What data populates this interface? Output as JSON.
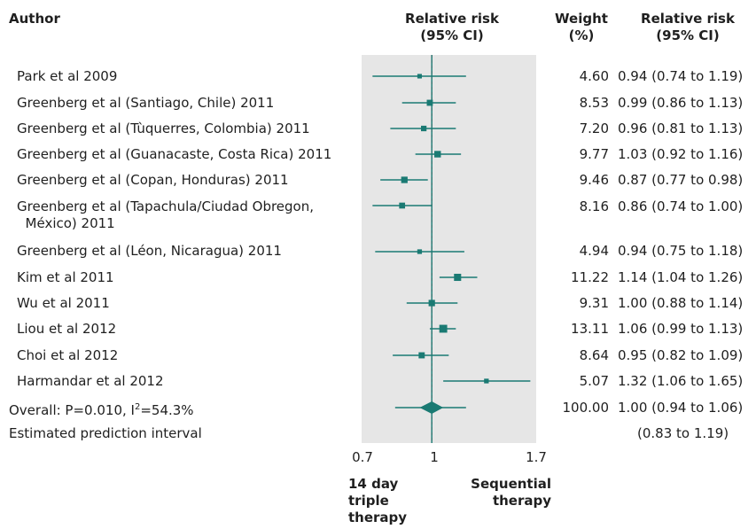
{
  "header": {
    "author": "Author",
    "rr_line1": "Relative risk",
    "rr_line2": "(95% CI)",
    "weight_line1": "Weight",
    "weight_line2": "(%)",
    "ci_line1": "Relative risk",
    "ci_line2": "(95% CI)"
  },
  "chart_data": {
    "type": "forest",
    "title": "",
    "xlabel": "",
    "xlim": [
      0.7,
      1.7
    ],
    "x_ticks": [
      "0.7",
      "1",
      "1.7"
    ],
    "reference_line": 1,
    "colors": {
      "marker": "#1a7a73",
      "panel": "#e6e6e6",
      "reference": "#1a7a73"
    },
    "studies": [
      {
        "author": "Park et al 2009",
        "weight": "4.60",
        "ci_text": "0.94 (0.74 to 1.19)",
        "rr": 0.94,
        "lo": 0.74,
        "hi": 1.19,
        "w": 4.6
      },
      {
        "author": "Greenberg et al (Santiago, Chile) 2011",
        "weight": "8.53",
        "ci_text": "0.99 (0.86 to 1.13)",
        "rr": 0.99,
        "lo": 0.86,
        "hi": 1.13,
        "w": 8.53
      },
      {
        "author": "Greenberg et al (Tùquerres, Colombia) 2011",
        "weight": "7.20",
        "ci_text": "0.96 (0.81 to 1.13)",
        "rr": 0.96,
        "lo": 0.81,
        "hi": 1.13,
        "w": 7.2
      },
      {
        "author": "Greenberg et al (Guanacaste, Costa Rica) 2011",
        "weight": "9.77",
        "ci_text": "1.03 (0.92 to 1.16)",
        "rr": 1.03,
        "lo": 0.92,
        "hi": 1.16,
        "w": 9.77
      },
      {
        "author": "Greenberg et al (Copan, Honduras) 2011",
        "weight": "9.46",
        "ci_text": "0.87 (0.77 to 0.98)",
        "rr": 0.87,
        "lo": 0.77,
        "hi": 0.98,
        "w": 9.46
      },
      {
        "author": "Greenberg et al (Tapachula/Ciudad Obregon,\n  México) 2011",
        "weight": "8.16",
        "ci_text": "0.86 (0.74 to 1.00)",
        "rr": 0.86,
        "lo": 0.74,
        "hi": 1.0,
        "w": 8.16
      },
      {
        "author": "Greenberg et al (Léon, Nicaragua) 2011",
        "weight": "4.94",
        "ci_text": "0.94 (0.75 to 1.18)",
        "rr": 0.94,
        "lo": 0.75,
        "hi": 1.18,
        "w": 4.94
      },
      {
        "author": "Kim et al 2011",
        "weight": "11.22",
        "ci_text": "1.14 (1.04 to 1.26)",
        "rr": 1.14,
        "lo": 1.04,
        "hi": 1.26,
        "w": 11.22
      },
      {
        "author": "Wu et al 2011",
        "weight": "9.31",
        "ci_text": "1.00 (0.88 to 1.14)",
        "rr": 1.0,
        "lo": 0.88,
        "hi": 1.14,
        "w": 9.31
      },
      {
        "author": "Liou et al 2012",
        "weight": "13.11",
        "ci_text": "1.06 (0.99 to 1.13)",
        "rr": 1.06,
        "lo": 0.99,
        "hi": 1.13,
        "w": 13.11
      },
      {
        "author": "Choi et al 2012",
        "weight": "8.64",
        "ci_text": "0.95 (0.82 to 1.09)",
        "rr": 0.95,
        "lo": 0.82,
        "hi": 1.09,
        "w": 8.64
      },
      {
        "author": "Harmandar et al 2012",
        "weight": "5.07",
        "ci_text": "1.32 (1.06 to 1.65)",
        "rr": 1.32,
        "lo": 1.06,
        "hi": 1.65,
        "w": 5.07
      }
    ],
    "overall": {
      "label_prefix": "Overall: P=0.010, I",
      "label_sup": "2",
      "label_suffix": "=54.3%",
      "weight": "100.00",
      "ci_text": "1.00 (0.94 to 1.06)",
      "rr": 1.0,
      "lo": 0.94,
      "hi": 1.06,
      "pi_lo": 0.83,
      "pi_hi": 1.19
    },
    "prediction_interval": {
      "label": "Estimated prediction interval",
      "ci_text": "(0.83 to 1.19)"
    },
    "favours_left": "14 day\ntriple\ntherapy",
    "favours_right": "Sequential\ntherapy"
  }
}
